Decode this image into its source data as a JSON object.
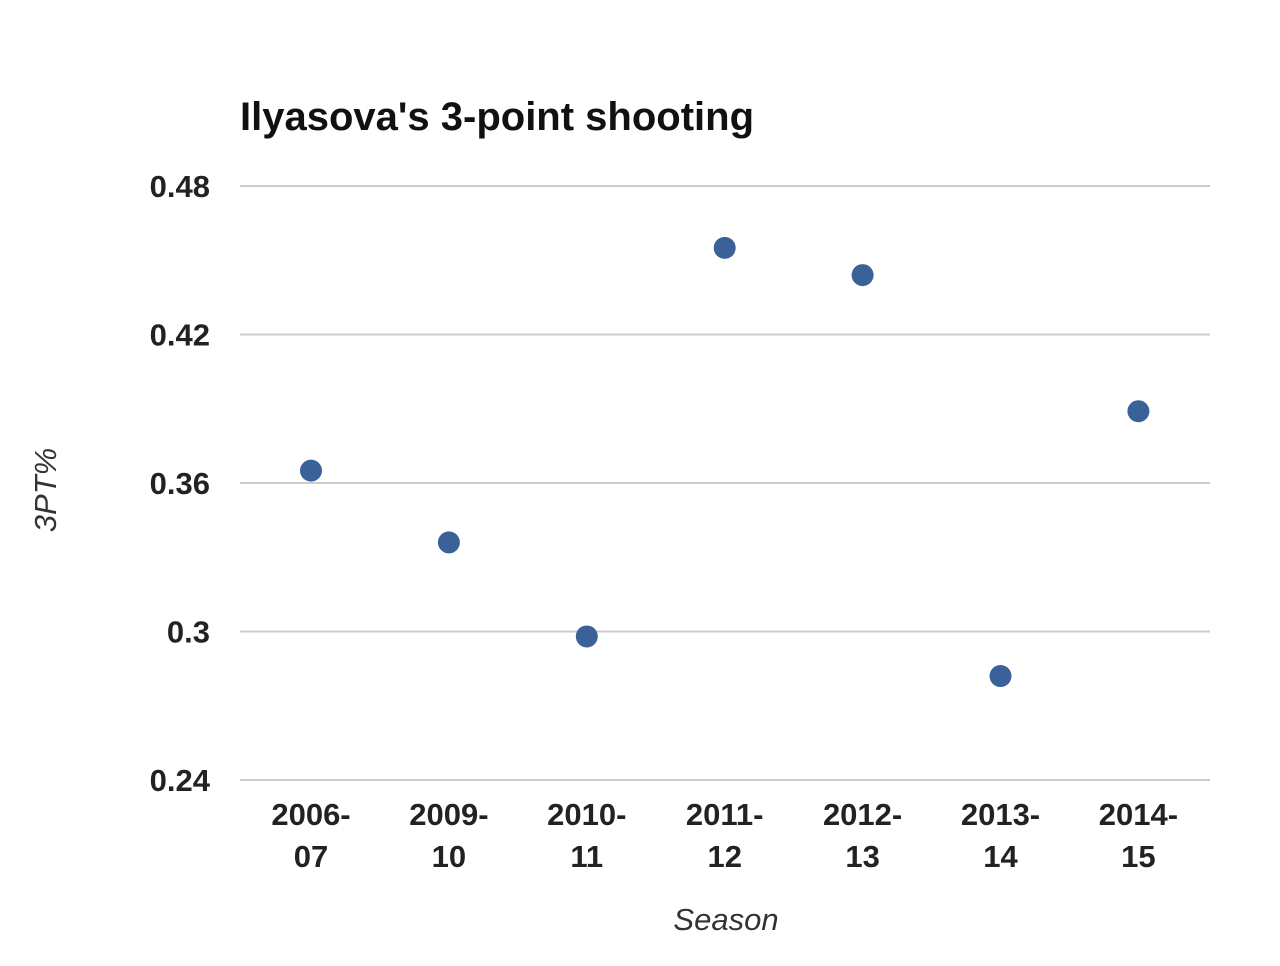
{
  "chart_data": {
    "type": "scatter",
    "title": "Ilyasova's 3-point shooting",
    "xlabel": "Season",
    "ylabel": "3PT%",
    "categories": [
      [
        "2006-",
        "07"
      ],
      [
        "2009-",
        "10"
      ],
      [
        "2010-",
        "11"
      ],
      [
        "2011-",
        "12"
      ],
      [
        "2012-",
        "13"
      ],
      [
        "2013-",
        "14"
      ],
      [
        "2014-",
        "15"
      ]
    ],
    "values": [
      0.365,
      0.336,
      0.298,
      0.455,
      0.444,
      0.282,
      0.389
    ],
    "ylim": [
      0.24,
      0.48
    ],
    "yticks": [
      "0.48",
      "0.42",
      "0.36",
      "0.3",
      "0.24"
    ],
    "ytick_values": [
      0.48,
      0.42,
      0.36,
      0.3,
      0.24
    ],
    "grid": true,
    "legend": "none",
    "point_color": "#3a6299",
    "grid_color": "#cccccc"
  }
}
